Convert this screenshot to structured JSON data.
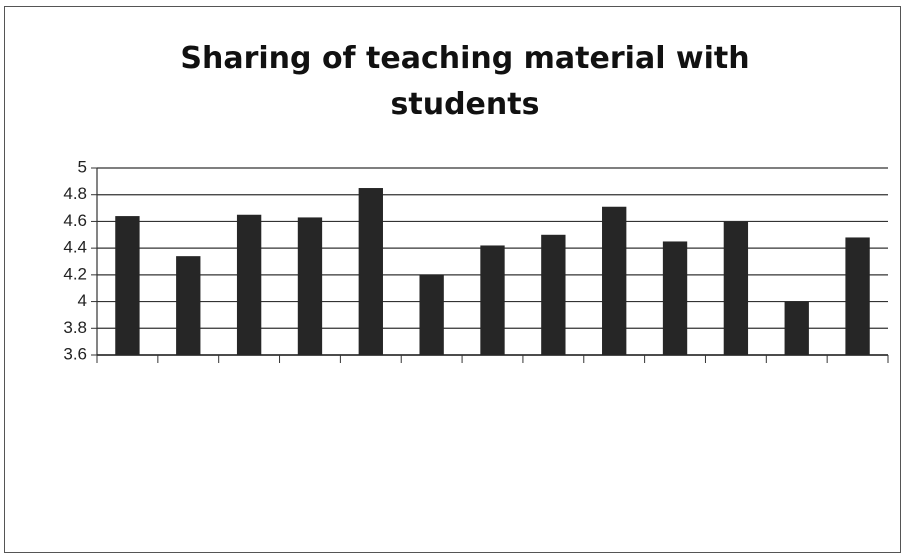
{
  "chart_data": {
    "type": "bar",
    "title": "Sharing of teaching material with students",
    "categories": [
      null,
      null,
      null,
      null,
      null,
      null,
      null,
      null,
      null,
      null,
      null,
      null,
      null
    ],
    "values": [
      4.64,
      4.34,
      4.65,
      4.63,
      4.85,
      4.2,
      4.42,
      4.5,
      4.71,
      4.45,
      4.6,
      4.0,
      4.48
    ],
    "color": "#262626",
    "ylim": [
      3.6,
      5
    ],
    "yticks": [
      3.6,
      3.8,
      4,
      4.2,
      4.4,
      4.6,
      4.8,
      5
    ],
    "grid": true
  }
}
